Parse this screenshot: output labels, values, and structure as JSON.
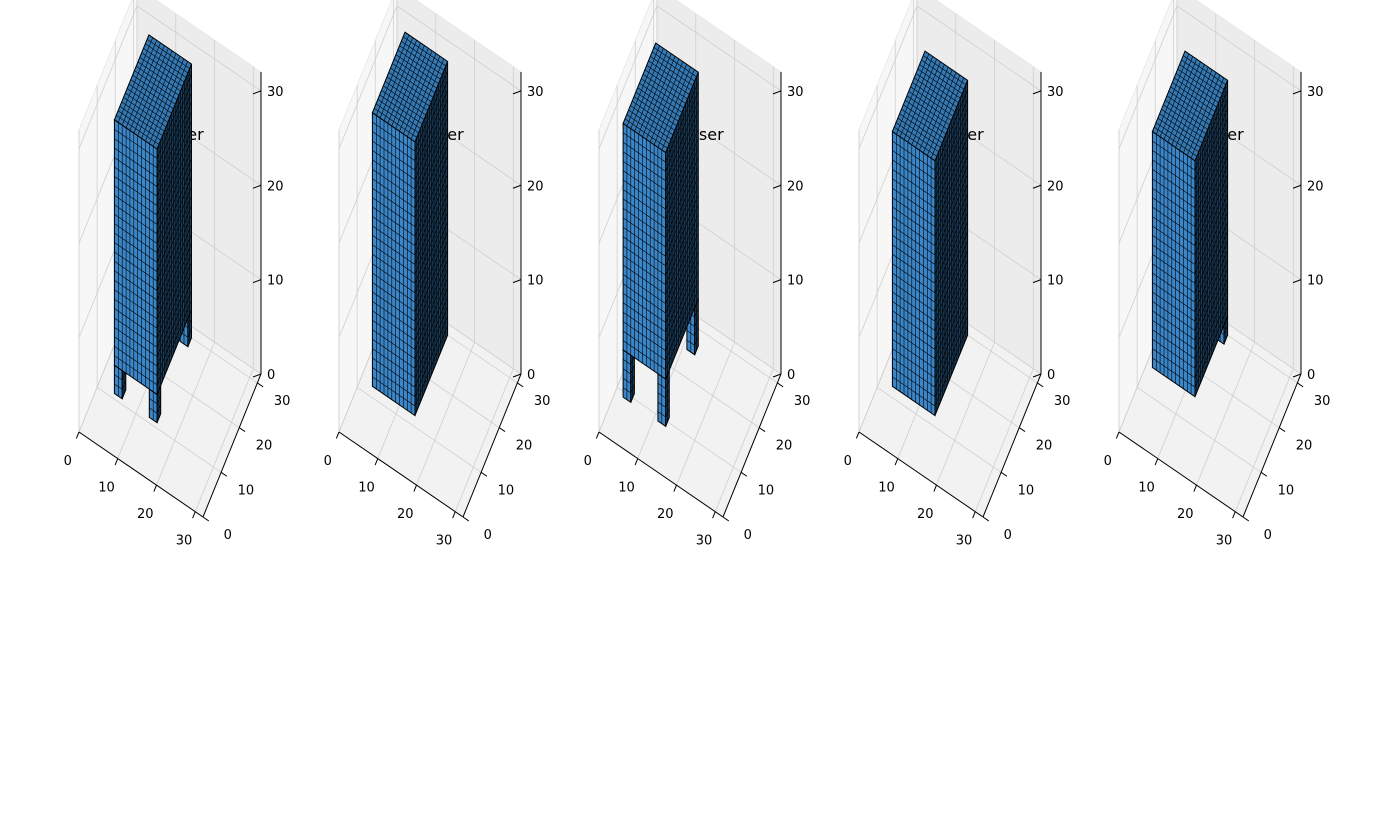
{
  "chart_data": [
    {
      "type": "voxel-3d",
      "title": "dresser",
      "x_ticks": [
        "0",
        "10",
        "20",
        "30"
      ],
      "y_ticks": [
        "0",
        "10",
        "20",
        "30"
      ],
      "z_ticks": [
        "0",
        "10",
        "20",
        "30"
      ],
      "xlim": [
        0,
        32
      ],
      "ylim": [
        0,
        32
      ],
      "zlim": [
        0,
        32
      ],
      "grid": true,
      "face_color": "#3a86c8",
      "edge_color": "#000000",
      "body": {
        "x": [
          4,
          15
        ],
        "y": [
          11,
          30
        ],
        "z": [
          3,
          29
        ]
      },
      "legs": [
        {
          "x": [
            4,
            6
          ],
          "y": [
            11,
            13
          ],
          "z": [
            0,
            3
          ]
        },
        {
          "x": [
            13,
            15
          ],
          "y": [
            11,
            13
          ],
          "z": [
            0,
            3
          ]
        },
        {
          "x": [
            13,
            15
          ],
          "y": [
            28,
            30
          ],
          "z": [
            0,
            3
          ]
        }
      ]
    },
    {
      "type": "voxel-3d",
      "title": "dresser",
      "x_ticks": [
        "0",
        "10",
        "20",
        "30"
      ],
      "y_ticks": [
        "0",
        "10",
        "20",
        "30"
      ],
      "z_ticks": [
        "0",
        "10",
        "20",
        "30"
      ],
      "xlim": [
        0,
        32
      ],
      "ylim": [
        0,
        32
      ],
      "zlim": [
        0,
        32
      ],
      "grid": true,
      "face_color": "#3a86c8",
      "edge_color": "#000000",
      "body": {
        "x": [
          3,
          14
        ],
        "y": [
          12,
          30
        ],
        "z": [
          0,
          29
        ]
      },
      "legs": []
    },
    {
      "type": "voxel-3d",
      "title": "dresser",
      "x_ticks": [
        "0",
        "10",
        "20",
        "30"
      ],
      "y_ticks": [
        "0",
        "10",
        "20",
        "30"
      ],
      "z_ticks": [
        "0",
        "10",
        "20",
        "30"
      ],
      "xlim": [
        0,
        32
      ],
      "ylim": [
        0,
        32
      ],
      "zlim": [
        0,
        32
      ],
      "grid": true,
      "face_color": "#3a86c8",
      "edge_color": "#000000",
      "body": {
        "x": [
          2,
          13
        ],
        "y": [
          9,
          27
        ],
        "z": [
          5,
          29
        ]
      },
      "legs": [
        {
          "x": [
            2,
            4
          ],
          "y": [
            9,
            11
          ],
          "z": [
            0,
            5
          ]
        },
        {
          "x": [
            11,
            13
          ],
          "y": [
            9,
            11
          ],
          "z": [
            0,
            5
          ]
        },
        {
          "x": [
            11,
            13
          ],
          "y": [
            25,
            27
          ],
          "z": [
            0,
            5
          ]
        }
      ]
    },
    {
      "type": "voxel-3d",
      "title": "dresser",
      "x_ticks": [
        "0",
        "10",
        "20",
        "30"
      ],
      "y_ticks": [
        "0",
        "10",
        "20",
        "30"
      ],
      "z_ticks": [
        "0",
        "10",
        "20",
        "30"
      ],
      "xlim": [
        0,
        32
      ],
      "ylim": [
        0,
        32
      ],
      "zlim": [
        0,
        32
      ],
      "grid": true,
      "face_color": "#3a86c8",
      "edge_color": "#000000",
      "body": {
        "x": [
          3,
          14
        ],
        "y": [
          12,
          30
        ],
        "z": [
          0,
          27
        ]
      },
      "legs": []
    },
    {
      "type": "voxel-3d",
      "title": "dresser",
      "x_ticks": [
        "0",
        "10",
        "20",
        "30"
      ],
      "y_ticks": [
        "0",
        "10",
        "20",
        "30"
      ],
      "z_ticks": [
        "0",
        "10",
        "20",
        "30"
      ],
      "xlim": [
        0,
        32
      ],
      "ylim": [
        0,
        32
      ],
      "zlim": [
        0,
        32
      ],
      "grid": true,
      "face_color": "#3a86c8",
      "edge_color": "#000000",
      "body": {
        "x": [
          3,
          14
        ],
        "y": [
          12,
          30
        ],
        "z": [
          2,
          27
        ]
      },
      "legs": [
        {
          "x": [
            12,
            14
          ],
          "y": [
            28,
            30
          ],
          "z": [
            0,
            2
          ]
        }
      ]
    }
  ]
}
